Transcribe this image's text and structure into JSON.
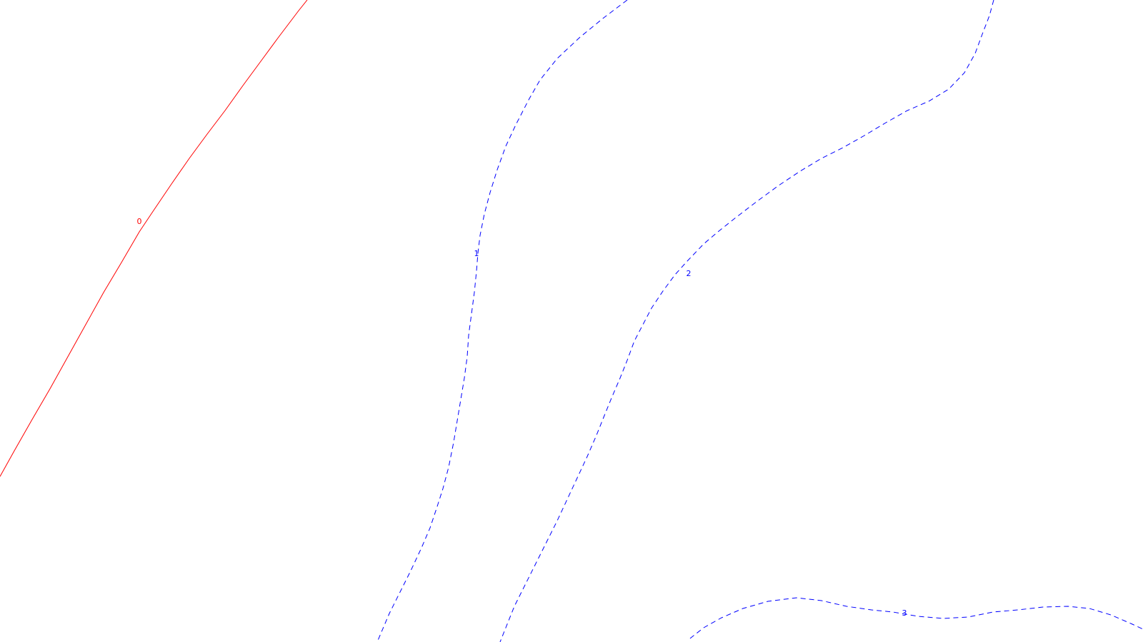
{
  "contours": [
    {
      "id": "contour-0",
      "level": "0",
      "style": "solid",
      "color": "#ff0000"
    },
    {
      "id": "contour-1",
      "level": "1",
      "style": "dashed",
      "color": "#0000ff"
    },
    {
      "id": "contour-2",
      "level": "2",
      "style": "dashed",
      "color": "#0000ff"
    },
    {
      "id": "contour-3",
      "level": "3",
      "style": "dashed",
      "color": "#0000ff"
    }
  ],
  "background": "#ffffff"
}
